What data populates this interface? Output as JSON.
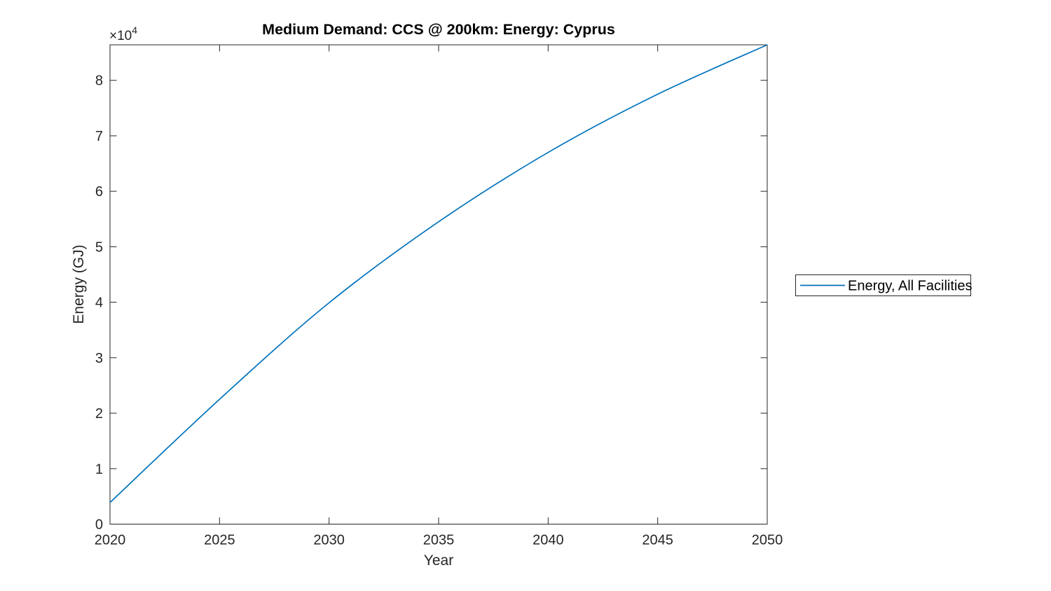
{
  "figure": {
    "background": "#ffffff"
  },
  "chart_data": {
    "type": "line",
    "title": "Medium Demand: CCS @ 200km: Energy: Cyprus",
    "xlabel": "Year",
    "ylabel": "Energy (GJ)",
    "y_exponent_base": "×10",
    "y_exponent_power": "4",
    "x": [
      2020,
      2025,
      2030,
      2035,
      2040,
      2045,
      2050
    ],
    "series": [
      {
        "name": "Energy, All Facilities",
        "color": "#0072BD",
        "values": [
          3900,
          22500,
          39900,
          54500,
          67000,
          77500,
          86400
        ]
      }
    ],
    "xlim": [
      2020,
      2050
    ],
    "ylim": [
      0,
      86400
    ],
    "x_ticks": [
      "2020",
      "2025",
      "2030",
      "2035",
      "2040",
      "2045",
      "2050"
    ],
    "x_tick_values": [
      2020,
      2025,
      2030,
      2035,
      2040,
      2045,
      2050
    ],
    "y_ticks": [
      "0",
      "1",
      "2",
      "3",
      "4",
      "5",
      "6",
      "7",
      "8"
    ],
    "y_tick_values": [
      0,
      10000,
      20000,
      30000,
      40000,
      50000,
      60000,
      70000,
      80000
    ],
    "grid": false,
    "legend_position": "right-outside",
    "axis_color": "#262626",
    "line_width": 1.7
  }
}
